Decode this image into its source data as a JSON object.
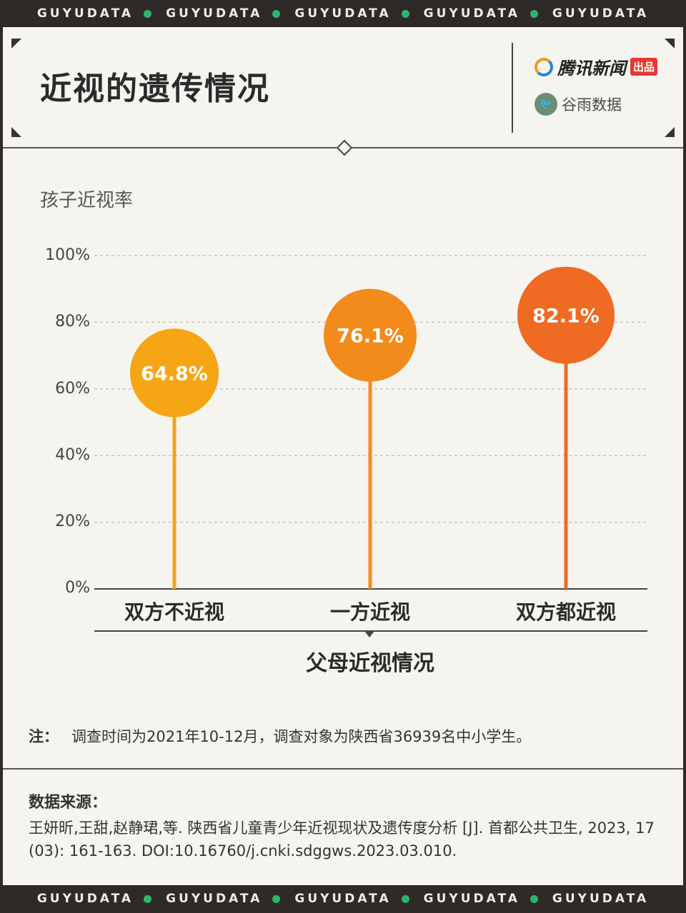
{
  "band": {
    "text": "GUYUDATA"
  },
  "header": {
    "title": "近视的遗传情况",
    "brand_primary": "腾讯新闻",
    "brand_tag": "出品",
    "brand_secondary": "谷雨数据"
  },
  "chart_data": {
    "type": "lollipop",
    "ylabel": "孩子近视率",
    "xlabel": "父母近视情况",
    "categories": [
      "双方不近视",
      "一方近视",
      "双方都近视"
    ],
    "values": [
      64.8,
      76.1,
      82.1
    ],
    "value_labels": [
      "64.8%",
      "76.1%",
      "82.1%"
    ],
    "colors": [
      "#f6a514",
      "#f38a1c",
      "#ef6a22"
    ],
    "yticks": [
      "0%",
      "20%",
      "40%",
      "60%",
      "80%",
      "100%"
    ],
    "ylim": [
      0,
      100
    ],
    "grid": true
  },
  "note": {
    "label": "注：",
    "text": "调查时间为2021年10-12月，调查对象为陕西省36939名中小学生。"
  },
  "source": {
    "label": "数据来源：",
    "text": "王妍昕,王甜,赵静珺,等. 陕西省儿童青少年近视现状及遗传度分析 [J]. 首都公共卫生, 2023, 17 (03): 161-163. DOI:10.16760/j.cnki.sdggws.2023.03.010."
  }
}
